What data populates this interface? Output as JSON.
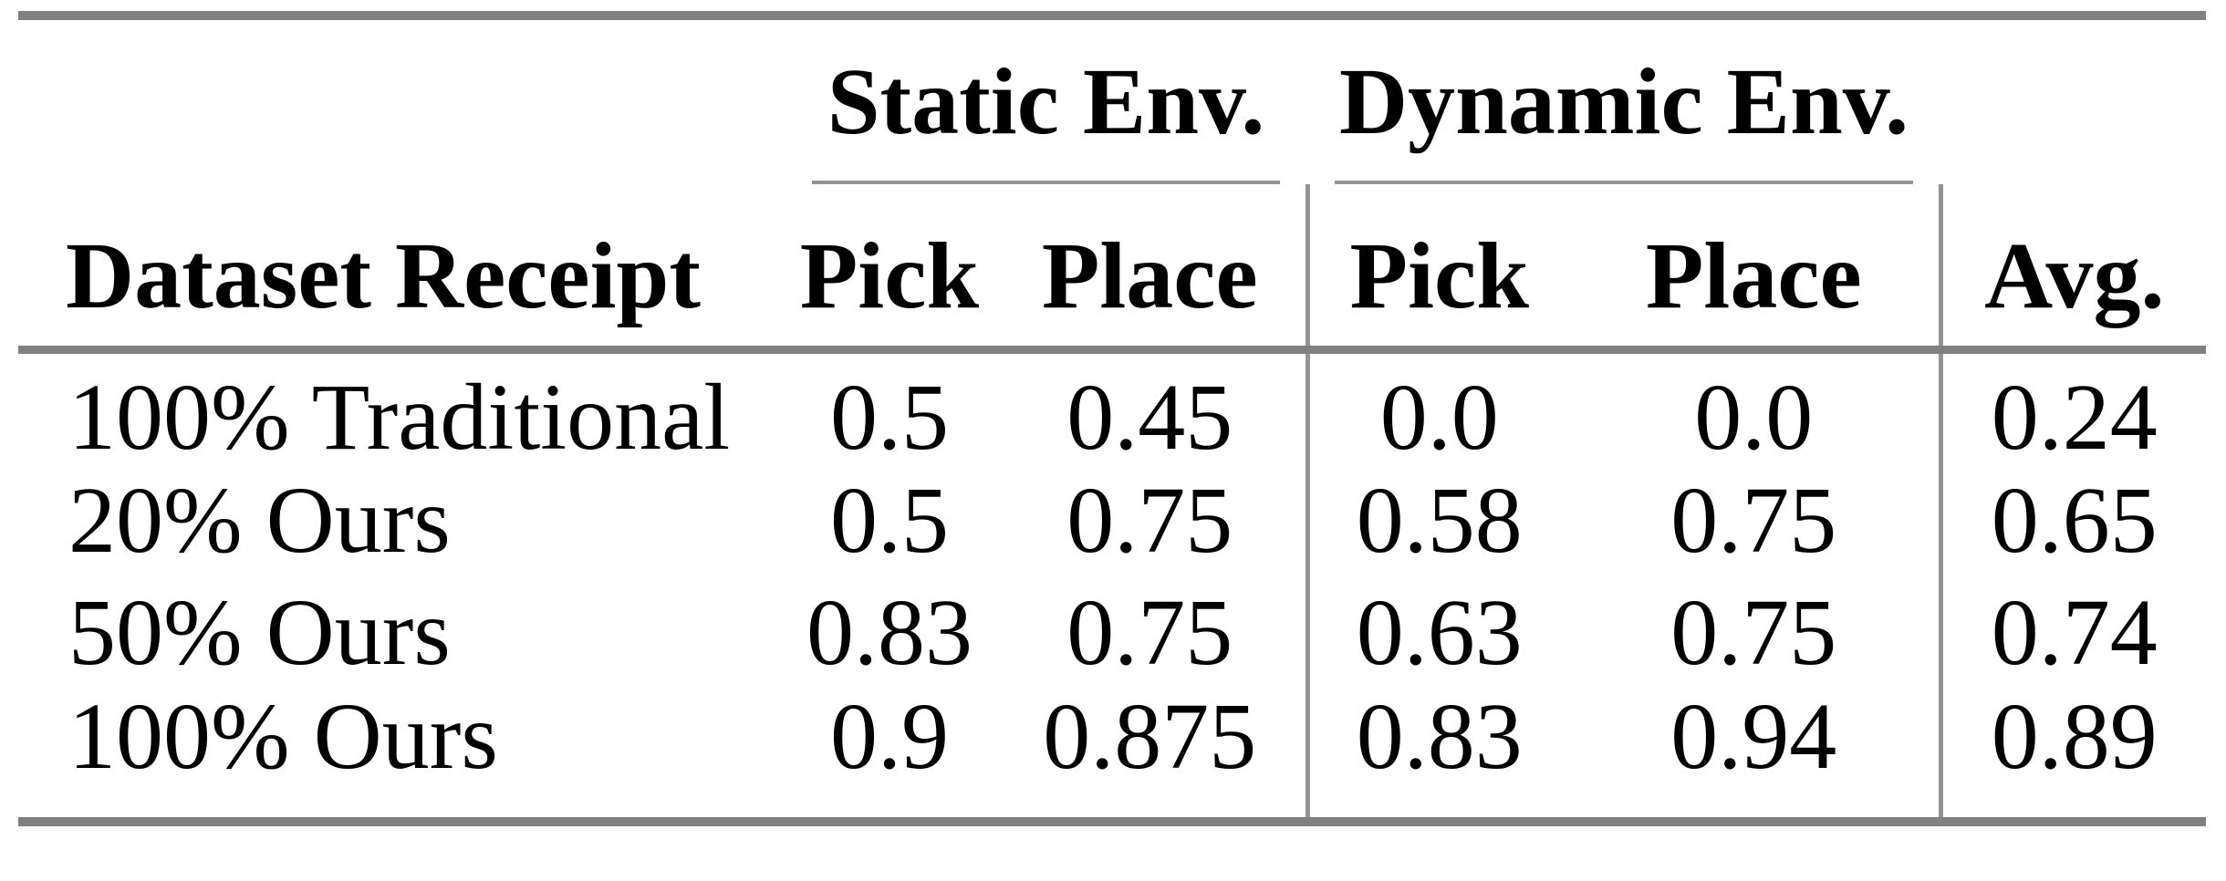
{
  "table": {
    "group_headers": {
      "static": "Static Env.",
      "dynamic": "Dynamic Env."
    },
    "column_headers": {
      "stub": "Dataset Receipt",
      "static_pick": "Pick",
      "static_place": "Place",
      "dynamic_pick": "Pick",
      "dynamic_place": "Place",
      "avg": "Avg."
    },
    "rows": [
      {
        "cells": [
          "100% Traditional",
          "0.5",
          "0.45",
          "0.0",
          "0.0",
          "0.24"
        ]
      },
      {
        "cells": [
          "20% Ours",
          "0.5",
          "0.75",
          "0.58",
          "0.75",
          "0.65"
        ]
      },
      {
        "cells": [
          "50% Ours",
          "0.83",
          "0.75",
          "0.63",
          "0.75",
          "0.74"
        ]
      },
      {
        "cells": [
          "100% Ours",
          "0.9",
          "0.875",
          "0.83",
          "0.94",
          "0.89"
        ]
      }
    ],
    "colors": {
      "rule_thick": "#808080",
      "rule_thin": "#949494",
      "text": "#000000",
      "background": "#ffffff"
    }
  }
}
